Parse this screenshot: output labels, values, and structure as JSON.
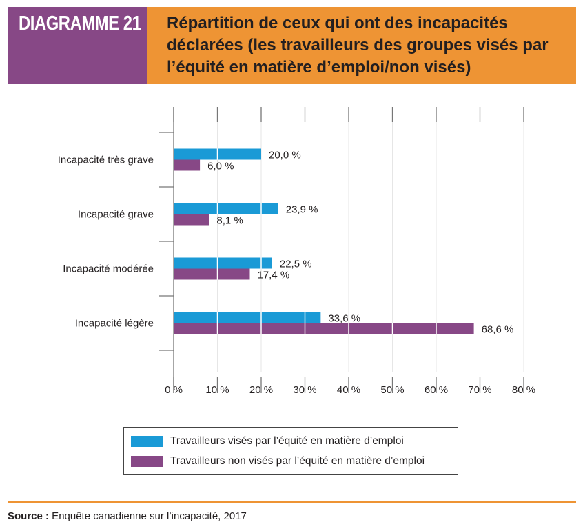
{
  "header": {
    "label": "DIAGRAMME 21",
    "title": "Répartition de ceux qui ont des incapacités déclarées (les travailleurs des groupes visés par l’équité en matière d’emploi/non visés)",
    "colors": {
      "label_bg": "#874886",
      "title_bg": "#ee9434"
    }
  },
  "chart_data": {
    "type": "bar",
    "orientation": "horizontal",
    "title": "Répartition de ceux qui ont des incapacités déclarées (les travailleurs des groupes visés par l’équité en matière d’emploi/non visés)",
    "xlabel": "",
    "ylabel": "",
    "categories": [
      "Incapacité très grave",
      "Incapacité grave",
      "Incapacité modérée",
      "Incapacité légère"
    ],
    "series": [
      {
        "name": "Travailleurs visés par l’équité en matière d’emploi",
        "color": "#1a9ad6",
        "values": [
          20.0,
          23.9,
          22.5,
          33.6
        ],
        "labels": [
          "20,0 %",
          "23,9 %",
          "22,5 %",
          "33,6 %"
        ]
      },
      {
        "name": "Travailleurs non visés par l’équité en matière d’emploi",
        "color": "#874886",
        "values": [
          6.0,
          8.1,
          17.4,
          68.6
        ],
        "labels": [
          "6,0 %",
          "8,1 %",
          "17,4 %",
          "68,6 %"
        ]
      }
    ],
    "xlim": [
      0,
      80
    ],
    "xticks": [
      0,
      10,
      20,
      30,
      40,
      50,
      60,
      70,
      80
    ],
    "xtick_labels": [
      "0 %",
      "10 %",
      "20 %",
      "30 %",
      "40 %",
      "50 %",
      "60 %",
      "70 %",
      "80 %"
    ],
    "grid": true,
    "legend_position": "bottom"
  },
  "legend": {
    "items": [
      {
        "label": "Travailleurs visés par l’équité en matière d’emploi",
        "color": "#1a9ad6"
      },
      {
        "label": "Travailleurs non visés par l’équité en matière d’emploi",
        "color": "#874886"
      }
    ]
  },
  "footer": {
    "source_label": "Source :",
    "source_text": " Enquête canadienne sur l’incapacité, 2017",
    "rule_color": "#ee9434"
  }
}
